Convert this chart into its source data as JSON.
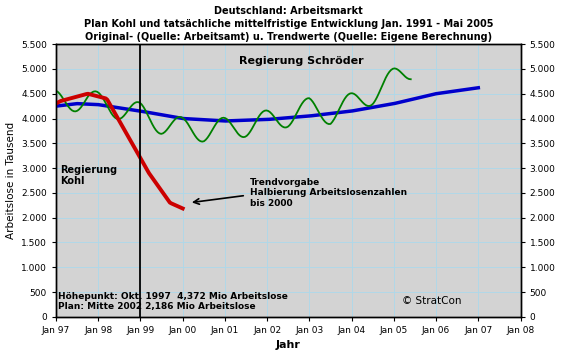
{
  "title_line1": "Deutschland: Arbeitsmarkt",
  "title_line2": "Plan Kohl und tatsächliche mittelfristige Entwicklung Jan. 1991 - Mai 2005",
  "title_line3": "Original- (Quelle: Arbeitsamt) u. Trendwerte (Quelle: Eigene Berechnung)",
  "xlabel": "Jahr",
  "ylabel": "Arbeitslose in Tausend",
  "ylim": [
    0,
    5500
  ],
  "yticks": [
    0,
    500,
    1000,
    1500,
    2000,
    2500,
    3000,
    3500,
    4000,
    4500,
    5000,
    5500
  ],
  "ytick_labels": [
    "0",
    "500",
    "1.000",
    "1.500",
    "2.000",
    "2.500",
    "3.000",
    "3.500",
    "4.000",
    "4.500",
    "5.000",
    "5.500"
  ],
  "xtick_years": [
    1997,
    1998,
    1999,
    2000,
    2001,
    2002,
    2003,
    2004,
    2005,
    2006,
    2007,
    2008
  ],
  "xtick_labels": [
    "Jan 97",
    "Jan 98",
    "Jan 99",
    "Jan 00",
    "Jan 01",
    "Jan 02",
    "Jan 03",
    "Jan 04",
    "Jan 05",
    "Jan 06",
    "Jan 07",
    "Jan 08"
  ],
  "vline_year": 1999.0,
  "vline_color": "#000000",
  "bg_color": "#d3d3d3",
  "grid_color": "#b0d8e8",
  "annotation_hoehepunkt": "Höhepunkt: Okt. 1997  4,372 Mio Arbeitslose",
  "annotation_plan": "Plan: Mitte 2002 2,186 Mio Arbeitslose",
  "annotation_regierung_kohl": "Regierung\nKohl",
  "annotation_regierung_schroeder": "Regierung Schröder",
  "annotation_trendvorgabe": "Trendvorgabe\nHalbierung Arbeitslosenzahlen\nbis 2000",
  "annotation_stratcon": "© StratCon",
  "border_color": "#000000",
  "line_green_color": "#008000",
  "line_red_color": "#cc0000",
  "line_blue_color": "#0000cc"
}
